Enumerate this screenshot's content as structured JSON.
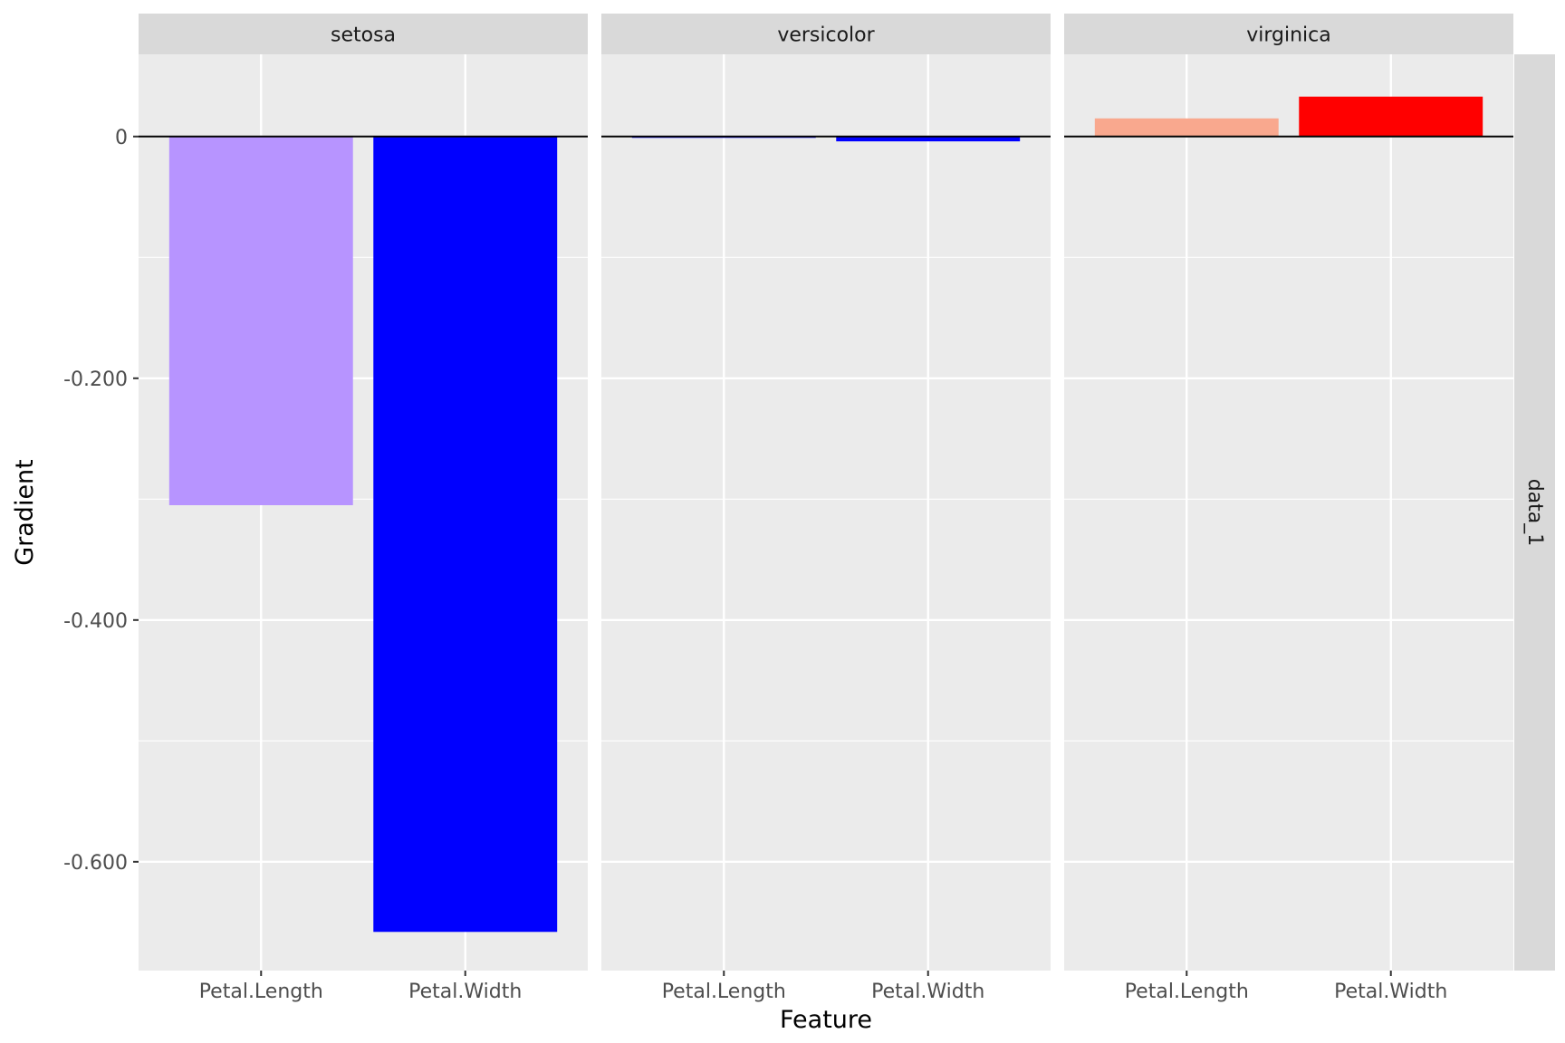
{
  "chart_data": {
    "type": "bar",
    "title": "",
    "xlabel": "Feature",
    "ylabel": "Gradient",
    "ylim": [
      -0.69,
      0.068
    ],
    "y_ticks": [
      {
        "value": 0,
        "label": "0"
      },
      {
        "value": -0.2,
        "label": "-0.200"
      },
      {
        "value": -0.4,
        "label": "-0.400"
      },
      {
        "value": -0.6,
        "label": "-0.600"
      }
    ],
    "categories": [
      "Petal.Length",
      "Petal.Width"
    ],
    "row_facet": "data_1",
    "grid": true,
    "legend": "none",
    "colors": {
      "panel_bg": "#ebebeb",
      "strip_bg": "#d9d9d9",
      "grid": "#ffffff",
      "zero_line": "#000000"
    },
    "facets": [
      {
        "label": "setosa",
        "bars": [
          {
            "category": "Petal.Length",
            "value": -0.305,
            "color": "#b794ff"
          },
          {
            "category": "Petal.Width",
            "value": -0.658,
            "color": "#0000ff"
          }
        ]
      },
      {
        "label": "versicolor",
        "bars": [
          {
            "category": "Petal.Length",
            "value": -0.001,
            "color": "#1a1aff"
          },
          {
            "category": "Petal.Width",
            "value": -0.004,
            "color": "#0000ff"
          }
        ]
      },
      {
        "label": "virginica",
        "bars": [
          {
            "category": "Petal.Length",
            "value": 0.015,
            "color": "#f9a88e"
          },
          {
            "category": "Petal.Width",
            "value": 0.033,
            "color": "#ff0000"
          }
        ]
      }
    ]
  }
}
